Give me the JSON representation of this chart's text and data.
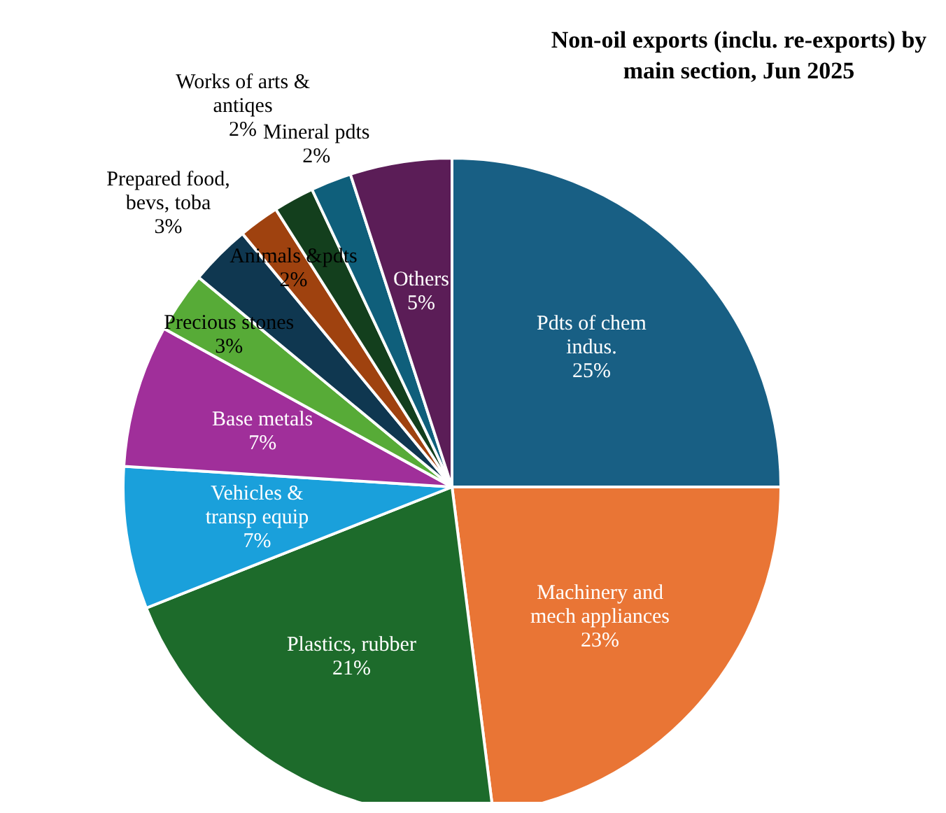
{
  "chart_data": {
    "type": "pie",
    "title": "Non-oil exports (inclu. re-exports) by main section, Jun 2025",
    "categories": [
      "Pdts of chem indus.",
      "Machinery and mech appliances",
      "Plastics, rubber",
      "Vehicles & transp equip",
      "Base metals",
      "Precious stones",
      "Prepared food, bevs, toba",
      "Animals &pdts",
      "Works of arts & antiqes",
      "Mineral pdts",
      "Others"
    ],
    "values": [
      25,
      23,
      21,
      7,
      7,
      3,
      3,
      2,
      2,
      2,
      5
    ],
    "value_labels": [
      "25%",
      "23%",
      "21%",
      "7%",
      "7%",
      "3%",
      "3%",
      "2%",
      "2%",
      "2%",
      "5%"
    ],
    "colors": [
      "#185f84",
      "#e97535",
      "#1d6b2b",
      "#1aa0db",
      "#a02f9a",
      "#57ab37",
      "#0f3750",
      "#9f420f",
      "#133f1d",
      "#0f5f7b",
      "#5b1d57"
    ],
    "legend": false
  }
}
